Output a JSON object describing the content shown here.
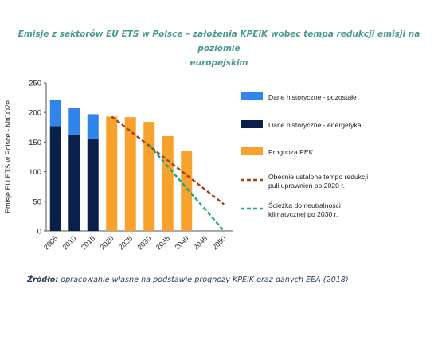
{
  "chart_data": {
    "type": "bar",
    "title": "Emisje z sektorów EU ETS w Polsce – założenia KPEiK wobec tempa redukcji emisji na poziomie europejskim",
    "ylabel": "Emisje EU ETS w Polsce - MtCO2e",
    "xlabel": "",
    "ylim": [
      0,
      250
    ],
    "yticks": [
      0,
      50,
      100,
      150,
      200,
      250
    ],
    "categories": [
      "2005",
      "2010",
      "2015",
      "2020",
      "2025",
      "2030",
      "2035",
      "2040",
      "2045",
      "2050"
    ],
    "series": [
      {
        "name": "Dane historyczne - energetyka",
        "kind": "bar",
        "stack": "hist",
        "color": "#0b1f4b",
        "values": [
          177,
          163,
          156,
          null,
          null,
          null,
          null,
          null,
          null,
          null
        ]
      },
      {
        "name": "Dane historyczne - pozostałe",
        "kind": "bar",
        "stack": "hist",
        "color": "#2f86e8",
        "values": [
          44,
          44,
          41,
          null,
          null,
          null,
          null,
          null,
          null,
          null
        ]
      },
      {
        "name": "Prognoza PEK",
        "kind": "bar",
        "stack": "forecast",
        "color": "#f6a22d",
        "values": [
          null,
          null,
          null,
          193,
          192,
          184,
          160,
          135,
          null,
          null
        ]
      },
      {
        "name": "Obecnie ustalone tempo redukcji puli uprawnień po 2020 r.",
        "kind": "line",
        "color": "#a0411f",
        "dash": true,
        "points": [
          [
            "2020",
            193
          ],
          [
            "2050",
            45
          ]
        ]
      },
      {
        "name": "Ścieżka do neutralności klimatycznej po 2030 r.",
        "kind": "line",
        "color": "#19a87c",
        "dash": true,
        "points": [
          [
            "2030",
            145
          ],
          [
            "2050",
            0
          ]
        ]
      }
    ],
    "legend": [
      {
        "label": "Dane historyczne - pozostałe",
        "kind": "box",
        "color": "#2f86e8"
      },
      {
        "label": "Dane historyczne - energetyka",
        "kind": "box",
        "color": "#0b1f4b"
      },
      {
        "label": "Prognoza PEK",
        "kind": "box",
        "color": "#f6a22d"
      },
      {
        "label": "Obecnie ustalone tempo redukcji puli uprawnień po 2020 r.",
        "lines": [
          "Obecnie ustalone tempo redukcji",
          "puli uprawnień po 2020 r."
        ],
        "kind": "dash",
        "color": "#a0411f"
      },
      {
        "label": "Ścieżka do neutralności klimatycznej po 2030 r.",
        "lines": [
          "Ścieżka do neutralności",
          "klimatycznej po 2030 r."
        ],
        "kind": "dash",
        "color": "#19a87c"
      }
    ],
    "legend_position": "right",
    "grid": false
  },
  "title_lines": [
    "Emisje z sektorów EU ETS w Polsce – założenia KPEiK wobec tempa redukcji emisji na poziomie",
    "europejskim"
  ],
  "source": {
    "label": "Źródło:",
    "text": " opracowanie własne na podstawie prognozy KPEiK oraz danych EEA (2018)"
  }
}
